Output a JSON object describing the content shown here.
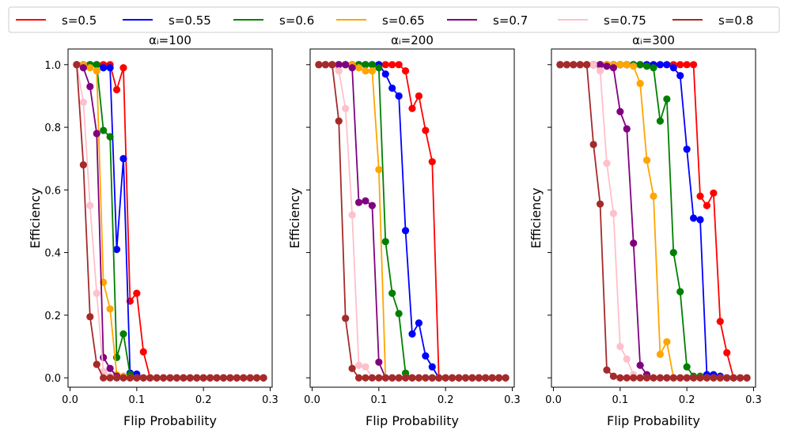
{
  "chart_data": {
    "type": "line",
    "legend": {
      "placement": "top",
      "entries": [
        {
          "label": "s=0.5",
          "color": "#ff0000"
        },
        {
          "label": "s=0.55",
          "color": "#0000ff"
        },
        {
          "label": "s=0.6",
          "color": "#008000"
        },
        {
          "label": "s=0.65",
          "color": "#ffa500"
        },
        {
          "label": "s=0.7",
          "color": "#800080"
        },
        {
          "label": "s=0.75",
          "color": "#ffc0cb"
        },
        {
          "label": "s=0.8",
          "color": "#a52a2a"
        }
      ]
    },
    "x": [
      0.01,
      0.02,
      0.03,
      0.04,
      0.05,
      0.06,
      0.07,
      0.08,
      0.09,
      0.1,
      0.11,
      0.12,
      0.13,
      0.14,
      0.15,
      0.16,
      0.17,
      0.18,
      0.19,
      0.2,
      0.21,
      0.22,
      0.23,
      0.24,
      0.25,
      0.26,
      0.27,
      0.28,
      0.29
    ],
    "xlim": [
      -0.003,
      0.303
    ],
    "ylim": [
      -0.03,
      1.05
    ],
    "xticks": [
      "0.0",
      "0.1",
      "0.2",
      "0.3"
    ],
    "xtick_values": [
      0,
      0.1,
      0.2,
      0.3
    ],
    "yticks": [
      "0.0",
      "0.2",
      "0.4",
      "0.6",
      "0.8",
      "1.0"
    ],
    "ytick_values": [
      0,
      0.2,
      0.4,
      0.6,
      0.8,
      1.0
    ],
    "xlabel": "Flip Probability",
    "ylabel": "Efficiency",
    "panels": [
      {
        "title": "αᵢ=100",
        "series": [
          {
            "name": "s=0.5",
            "values": [
              1,
              1,
              1,
              1,
              1,
              1,
              0.92,
              0.99,
              0.245,
              0.27,
              0.083,
              0,
              0,
              0,
              0,
              0,
              0,
              0,
              0,
              0,
              0,
              0,
              0,
              0,
              0,
              0,
              0,
              0,
              0
            ]
          },
          {
            "name": "s=0.55",
            "values": [
              1,
              1,
              1,
              1,
              0.99,
              0.99,
              0.41,
              0.7,
              0.015,
              0.012,
              0,
              0,
              0,
              0,
              0,
              0,
              0,
              0,
              0,
              0,
              0,
              0,
              0,
              0,
              0,
              0,
              0,
              0,
              0
            ]
          },
          {
            "name": "s=0.6",
            "values": [
              1,
              1,
              1,
              1,
              0.79,
              0.77,
              0.065,
              0.14,
              0.01,
              0,
              0,
              0,
              0,
              0,
              0,
              0,
              0,
              0,
              0,
              0,
              0,
              0,
              0,
              0,
              0,
              0,
              0,
              0,
              0
            ]
          },
          {
            "name": "s=0.65",
            "values": [
              1,
              1,
              0.99,
              0.98,
              0.305,
              0.22,
              0.01,
              0.005,
              0,
              0,
              0,
              0,
              0,
              0,
              0,
              0,
              0,
              0,
              0,
              0,
              0,
              0,
              0,
              0,
              0,
              0,
              0,
              0,
              0
            ]
          },
          {
            "name": "s=0.7",
            "values": [
              1,
              0.99,
              0.93,
              0.78,
              0.065,
              0.03,
              0.005,
              0,
              0,
              0,
              0,
              0,
              0,
              0,
              0,
              0,
              0,
              0,
              0,
              0,
              0,
              0,
              0,
              0,
              0,
              0,
              0,
              0,
              0
            ]
          },
          {
            "name": "s=0.75",
            "values": [
              1,
              0.88,
              0.55,
              0.27,
              0.02,
              0.005,
              0,
              0,
              0,
              0,
              0,
              0,
              0,
              0,
              0,
              0,
              0,
              0,
              0,
              0,
              0,
              0,
              0,
              0,
              0,
              0,
              0,
              0,
              0
            ]
          },
          {
            "name": "s=0.8",
            "values": [
              1,
              0.68,
              0.195,
              0.043,
              0,
              0,
              0,
              0,
              0,
              0,
              0,
              0,
              0,
              0,
              0,
              0,
              0,
              0,
              0,
              0,
              0,
              0,
              0,
              0,
              0,
              0,
              0,
              0,
              0
            ]
          }
        ]
      },
      {
        "title": "αᵢ=200",
        "series": [
          {
            "name": "s=0.5",
            "values": [
              1,
              1,
              1,
              1,
              1,
              1,
              1,
              1,
              1,
              1,
              1,
              1,
              1,
              0.98,
              0.86,
              0.9,
              0.79,
              0.69,
              0,
              0,
              0,
              0,
              0,
              0,
              0,
              0,
              0,
              0,
              0
            ]
          },
          {
            "name": "s=0.55",
            "values": [
              1,
              1,
              1,
              1,
              1,
              1,
              1,
              1,
              1,
              1,
              0.97,
              0.925,
              0.9,
              0.47,
              0.14,
              0.175,
              0.07,
              0.035,
              0,
              0,
              0,
              0,
              0,
              0,
              0,
              0,
              0,
              0,
              0
            ]
          },
          {
            "name": "s=0.6",
            "values": [
              1,
              1,
              1,
              1,
              1,
              1,
              1,
              1,
              1,
              0.99,
              0.435,
              0.27,
              0.205,
              0.015,
              0,
              0,
              0,
              0,
              0,
              0,
              0,
              0,
              0,
              0,
              0,
              0,
              0,
              0,
              0
            ]
          },
          {
            "name": "s=0.65",
            "values": [
              1,
              1,
              1,
              1,
              1,
              1,
              0.99,
              0.98,
              0.98,
              0.665,
              0,
              0,
              0,
              0,
              0,
              0,
              0,
              0,
              0,
              0,
              0,
              0,
              0,
              0,
              0,
              0,
              0,
              0,
              0
            ]
          },
          {
            "name": "s=0.7",
            "values": [
              1,
              1,
              1,
              1,
              1,
              0.99,
              0.56,
              0.565,
              0.55,
              0.05,
              0,
              0,
              0,
              0,
              0,
              0,
              0,
              0,
              0,
              0,
              0,
              0,
              0,
              0,
              0,
              0,
              0,
              0,
              0
            ]
          },
          {
            "name": "s=0.75",
            "values": [
              1,
              1,
              1,
              0.98,
              0.86,
              0.52,
              0.04,
              0.035,
              0,
              0,
              0,
              0,
              0,
              0,
              0,
              0,
              0,
              0,
              0,
              0,
              0,
              0,
              0,
              0,
              0,
              0,
              0,
              0,
              0
            ]
          },
          {
            "name": "s=0.8",
            "values": [
              1,
              1,
              1,
              0.82,
              0.19,
              0.03,
              0,
              0,
              0,
              0,
              0,
              0,
              0,
              0,
              0,
              0,
              0,
              0,
              0,
              0,
              0,
              0,
              0,
              0,
              0,
              0,
              0,
              0,
              0
            ]
          }
        ]
      },
      {
        "title": "αᵢ=300",
        "series": [
          {
            "name": "s=0.5",
            "values": [
              1,
              1,
              1,
              1,
              1,
              1,
              1,
              1,
              1,
              1,
              1,
              1,
              1,
              1,
              1,
              1,
              1,
              1,
              1,
              1,
              1,
              0.58,
              0.55,
              0.59,
              0.18,
              0.08,
              0,
              0,
              0
            ]
          },
          {
            "name": "s=0.55",
            "values": [
              1,
              1,
              1,
              1,
              1,
              1,
              1,
              1,
              1,
              1,
              1,
              1,
              1,
              1,
              1,
              1,
              1,
              0.99,
              0.965,
              0.73,
              0.51,
              0.505,
              0.01,
              0.01,
              0.005,
              0,
              0,
              0,
              0
            ]
          },
          {
            "name": "s=0.6",
            "values": [
              1,
              1,
              1,
              1,
              1,
              1,
              1,
              1,
              1,
              1,
              1,
              1,
              1,
              0.995,
              0.99,
              0.82,
              0.89,
              0.4,
              0.275,
              0.035,
              0.005,
              0.005,
              0,
              0,
              0,
              0,
              0,
              0,
              0
            ]
          },
          {
            "name": "s=0.65",
            "values": [
              1,
              1,
              1,
              1,
              1,
              1,
              1,
              1,
              1,
              1,
              1,
              0.995,
              0.94,
              0.695,
              0.58,
              0.075,
              0.115,
              0,
              0,
              0,
              0,
              0,
              0,
              0,
              0,
              0,
              0,
              0,
              0
            ]
          },
          {
            "name": "s=0.7",
            "values": [
              1,
              1,
              1,
              1,
              1,
              1,
              1,
              0.995,
              0.99,
              0.85,
              0.795,
              0.43,
              0.04,
              0.01,
              0,
              0,
              0,
              0,
              0,
              0,
              0,
              0,
              0,
              0,
              0,
              0,
              0,
              0,
              0
            ]
          },
          {
            "name": "s=0.75",
            "values": [
              1,
              1,
              1,
              1,
              1,
              1,
              0.98,
              0.685,
              0.525,
              0.1,
              0.06,
              0.01,
              0,
              0,
              0,
              0,
              0,
              0,
              0,
              0,
              0,
              0,
              0,
              0,
              0,
              0,
              0,
              0,
              0
            ]
          },
          {
            "name": "s=0.8",
            "values": [
              1,
              1,
              1,
              1,
              1,
              0.745,
              0.555,
              0.025,
              0.005,
              0,
              0,
              0,
              0,
              0,
              0,
              0,
              0,
              0,
              0,
              0,
              0,
              0,
              0,
              0,
              0,
              0,
              0,
              0,
              0
            ]
          }
        ]
      }
    ]
  }
}
